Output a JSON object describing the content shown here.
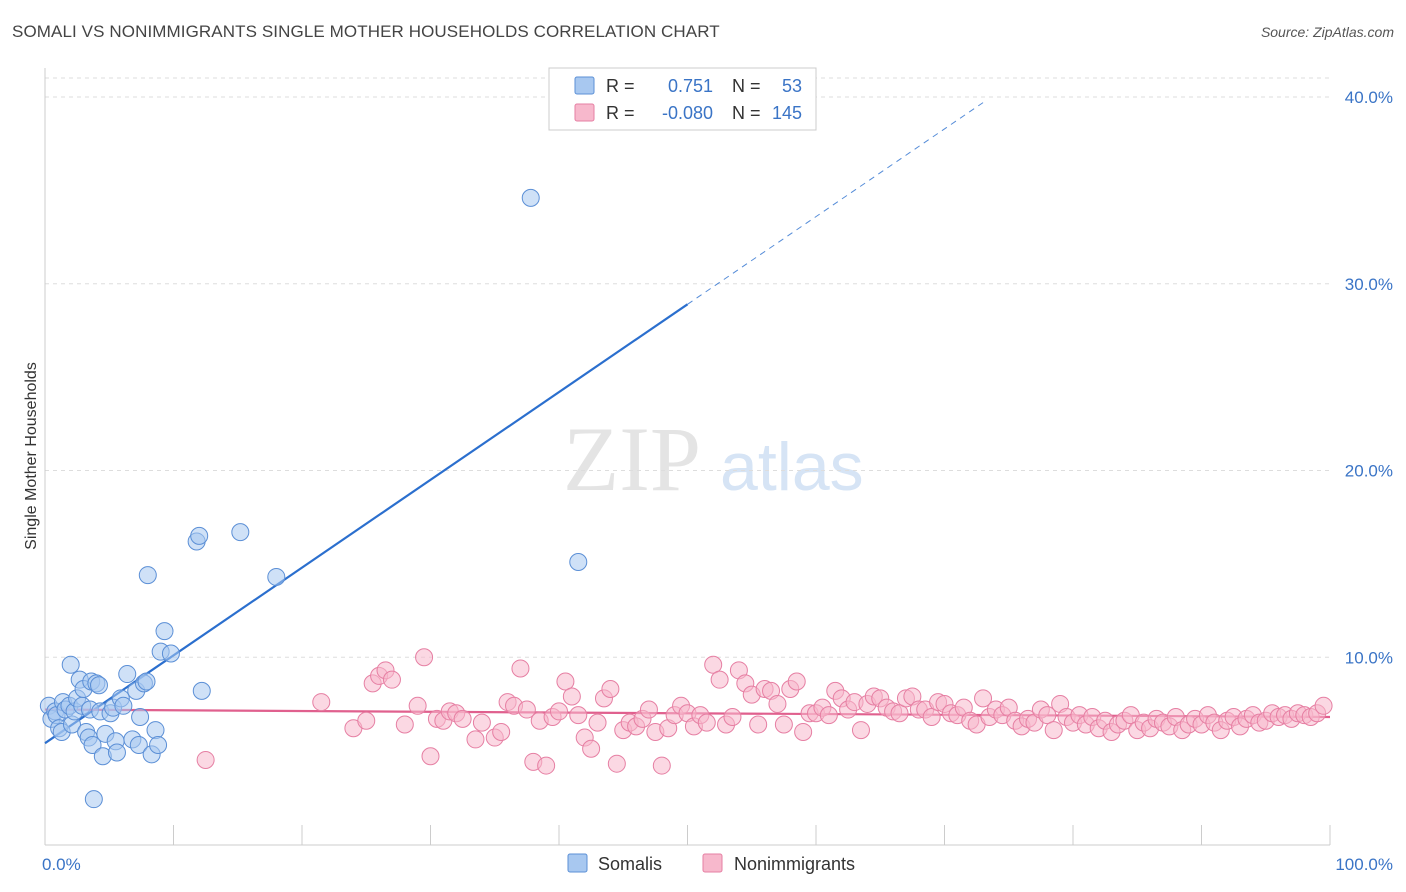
{
  "title": "SOMALI VS NONIMMIGRANTS SINGLE MOTHER HOUSEHOLDS CORRELATION CHART",
  "source": "Source: ZipAtlas.com",
  "watermark": {
    "zip": "ZIP",
    "atlas": "atlas"
  },
  "colors": {
    "somali_fill": "#a8c8f0",
    "somali_stroke": "#5b8fd6",
    "somali_line": "#2b6fce",
    "nonimm_fill": "#f7b8cc",
    "nonimm_stroke": "#e67fa3",
    "nonimm_line": "#e0608e",
    "axis_text": "#3a74c6",
    "grid": "#dddddd"
  },
  "legend": {
    "rows": [
      {
        "r_label": "R =",
        "r_value": "0.751",
        "n_label": "N =",
        "n_value": "53"
      },
      {
        "r_label": "R =",
        "r_value": "-0.080",
        "n_label": "N =",
        "n_value": "145"
      }
    ]
  },
  "bottom_legend": {
    "items": [
      {
        "label": "Somalis"
      },
      {
        "label": "Nonimmigrants"
      }
    ]
  },
  "chart_data": {
    "type": "scatter",
    "xlabel": "",
    "ylabel": "Single Mother Households",
    "xlim": [
      0,
      100
    ],
    "ylim": [
      0,
      40
    ],
    "x_tick_labels": [
      "0.0%",
      "100.0%"
    ],
    "y_ticks": [
      10,
      20,
      30,
      40
    ],
    "y_tick_labels": [
      "10.0%",
      "20.0%",
      "30.0%",
      "40.0%"
    ],
    "grid": true,
    "legend_position": "top-center",
    "series": [
      {
        "name": "Somalis",
        "r": 0.751,
        "n": 53,
        "trend": {
          "x0": 0,
          "y0": 5.4,
          "x1": 50,
          "y1": 28.9,
          "dashed_to_x": 73,
          "dashed_to_y": 39.7
        },
        "points": [
          [
            0.3,
            7.4
          ],
          [
            0.5,
            6.7
          ],
          [
            0.8,
            7.1
          ],
          [
            0.9,
            6.9
          ],
          [
            1.1,
            6.2
          ],
          [
            1.3,
            6.0
          ],
          [
            1.4,
            7.6
          ],
          [
            1.6,
            7.2
          ],
          [
            1.9,
            7.4
          ],
          [
            2.0,
            9.6
          ],
          [
            2.1,
            6.4
          ],
          [
            2.3,
            7.1
          ],
          [
            2.5,
            7.8
          ],
          [
            2.7,
            8.8
          ],
          [
            2.9,
            7.4
          ],
          [
            3.0,
            8.3
          ],
          [
            3.2,
            6.0
          ],
          [
            3.4,
            5.7
          ],
          [
            3.5,
            7.2
          ],
          [
            3.6,
            8.7
          ],
          [
            3.7,
            5.3
          ],
          [
            3.8,
            2.4
          ],
          [
            4.0,
            8.6
          ],
          [
            4.2,
            8.5
          ],
          [
            4.3,
            7.1
          ],
          [
            4.5,
            4.7
          ],
          [
            4.7,
            5.9
          ],
          [
            5.1,
            7.0
          ],
          [
            5.3,
            7.3
          ],
          [
            5.5,
            5.5
          ],
          [
            5.6,
            4.9
          ],
          [
            5.9,
            7.8
          ],
          [
            6.1,
            7.4
          ],
          [
            6.4,
            9.1
          ],
          [
            6.8,
            5.6
          ],
          [
            7.1,
            8.2
          ],
          [
            7.3,
            5.3
          ],
          [
            7.4,
            6.8
          ],
          [
            7.7,
            8.6
          ],
          [
            7.9,
            8.7
          ],
          [
            8.0,
            14.4
          ],
          [
            8.3,
            4.8
          ],
          [
            8.6,
            6.1
          ],
          [
            8.8,
            5.3
          ],
          [
            9.0,
            10.3
          ],
          [
            9.3,
            11.4
          ],
          [
            9.8,
            10.2
          ],
          [
            11.8,
            16.2
          ],
          [
            12.0,
            16.5
          ],
          [
            12.2,
            8.2
          ],
          [
            15.2,
            16.7
          ],
          [
            18.0,
            14.3
          ],
          [
            37.8,
            34.6
          ],
          [
            41.5,
            15.1
          ]
        ]
      },
      {
        "name": "Nonimmigrants",
        "r": -0.08,
        "n": 145,
        "trend": {
          "x0": 0,
          "y0": 7.2,
          "x1": 100,
          "y1": 6.8
        },
        "points": [
          [
            12.5,
            4.5
          ],
          [
            21.5,
            7.6
          ],
          [
            24.0,
            6.2
          ],
          [
            25.0,
            6.6
          ],
          [
            25.5,
            8.6
          ],
          [
            26.0,
            9.0
          ],
          [
            26.5,
            9.3
          ],
          [
            27.0,
            8.8
          ],
          [
            28.0,
            6.4
          ],
          [
            29.0,
            7.4
          ],
          [
            29.5,
            10.0
          ],
          [
            30.0,
            4.7
          ],
          [
            30.5,
            6.7
          ],
          [
            31.0,
            6.6
          ],
          [
            31.5,
            7.1
          ],
          [
            32.0,
            7.0
          ],
          [
            32.5,
            6.7
          ],
          [
            33.5,
            5.6
          ],
          [
            34.0,
            6.5
          ],
          [
            35.0,
            5.7
          ],
          [
            35.5,
            6.0
          ],
          [
            36.0,
            7.6
          ],
          [
            36.5,
            7.4
          ],
          [
            37.0,
            9.4
          ],
          [
            37.5,
            7.2
          ],
          [
            38.0,
            4.4
          ],
          [
            38.5,
            6.6
          ],
          [
            39.0,
            4.2
          ],
          [
            39.5,
            6.8
          ],
          [
            40.0,
            7.1
          ],
          [
            40.5,
            8.7
          ],
          [
            41.0,
            7.9
          ],
          [
            41.5,
            6.9
          ],
          [
            42.0,
            5.7
          ],
          [
            42.5,
            5.1
          ],
          [
            43.0,
            6.5
          ],
          [
            43.5,
            7.8
          ],
          [
            44.0,
            8.3
          ],
          [
            44.5,
            4.3
          ],
          [
            45.0,
            6.1
          ],
          [
            45.5,
            6.5
          ],
          [
            46.0,
            6.3
          ],
          [
            46.5,
            6.7
          ],
          [
            47.0,
            7.2
          ],
          [
            47.5,
            6.0
          ],
          [
            48.0,
            4.2
          ],
          [
            48.5,
            6.2
          ],
          [
            49.0,
            6.9
          ],
          [
            49.5,
            7.4
          ],
          [
            50.0,
            7.0
          ],
          [
            50.5,
            6.3
          ],
          [
            51.0,
            6.9
          ],
          [
            51.5,
            6.5
          ],
          [
            52.0,
            9.6
          ],
          [
            52.5,
            8.8
          ],
          [
            53.0,
            6.4
          ],
          [
            53.5,
            6.8
          ],
          [
            54.0,
            9.3
          ],
          [
            54.5,
            8.6
          ],
          [
            55.0,
            8.0
          ],
          [
            55.5,
            6.4
          ],
          [
            56.0,
            8.3
          ],
          [
            56.5,
            8.2
          ],
          [
            57.0,
            7.5
          ],
          [
            57.5,
            6.4
          ],
          [
            58.0,
            8.3
          ],
          [
            58.5,
            8.7
          ],
          [
            59.0,
            6.0
          ],
          [
            59.5,
            7.0
          ],
          [
            60.0,
            7.0
          ],
          [
            60.5,
            7.3
          ],
          [
            61.0,
            6.9
          ],
          [
            61.5,
            8.2
          ],
          [
            62.0,
            7.8
          ],
          [
            62.5,
            7.2
          ],
          [
            63.0,
            7.6
          ],
          [
            63.5,
            6.1
          ],
          [
            64.0,
            7.5
          ],
          [
            64.5,
            7.9
          ],
          [
            65.0,
            7.8
          ],
          [
            65.5,
            7.3
          ],
          [
            66.0,
            7.1
          ],
          [
            66.5,
            7.0
          ],
          [
            67.0,
            7.8
          ],
          [
            67.5,
            7.9
          ],
          [
            68.0,
            7.2
          ],
          [
            68.5,
            7.2
          ],
          [
            69.0,
            6.8
          ],
          [
            69.5,
            7.6
          ],
          [
            70.0,
            7.5
          ],
          [
            70.5,
            7.0
          ],
          [
            71.0,
            6.9
          ],
          [
            71.5,
            7.3
          ],
          [
            72.0,
            6.6
          ],
          [
            72.5,
            6.4
          ],
          [
            73.0,
            7.8
          ],
          [
            73.5,
            6.8
          ],
          [
            74.0,
            7.2
          ],
          [
            74.5,
            6.9
          ],
          [
            75.0,
            7.3
          ],
          [
            75.5,
            6.6
          ],
          [
            76.0,
            6.3
          ],
          [
            76.5,
            6.7
          ],
          [
            77.0,
            6.5
          ],
          [
            77.5,
            7.2
          ],
          [
            78.0,
            6.9
          ],
          [
            78.5,
            6.1
          ],
          [
            79.0,
            7.5
          ],
          [
            79.5,
            6.8
          ],
          [
            80.0,
            6.5
          ],
          [
            80.5,
            6.9
          ],
          [
            81.0,
            6.4
          ],
          [
            81.5,
            6.8
          ],
          [
            82.0,
            6.2
          ],
          [
            82.5,
            6.6
          ],
          [
            83.0,
            6.0
          ],
          [
            83.5,
            6.4
          ],
          [
            84.0,
            6.6
          ],
          [
            84.5,
            6.9
          ],
          [
            85.0,
            6.1
          ],
          [
            85.5,
            6.5
          ],
          [
            86.0,
            6.2
          ],
          [
            86.5,
            6.7
          ],
          [
            87.0,
            6.5
          ],
          [
            87.5,
            6.3
          ],
          [
            88.0,
            6.8
          ],
          [
            88.5,
            6.1
          ],
          [
            89.0,
            6.4
          ],
          [
            89.5,
            6.7
          ],
          [
            90.0,
            6.4
          ],
          [
            90.5,
            6.9
          ],
          [
            91.0,
            6.5
          ],
          [
            91.5,
            6.1
          ],
          [
            92.0,
            6.6
          ],
          [
            92.5,
            6.8
          ],
          [
            93.0,
            6.3
          ],
          [
            93.5,
            6.7
          ],
          [
            94.0,
            6.9
          ],
          [
            94.5,
            6.5
          ],
          [
            95.0,
            6.6
          ],
          [
            95.5,
            7.0
          ],
          [
            96.0,
            6.8
          ],
          [
            96.5,
            6.9
          ],
          [
            97.0,
            6.7
          ],
          [
            97.5,
            7.0
          ],
          [
            98.0,
            6.9
          ],
          [
            98.5,
            6.8
          ],
          [
            99.0,
            7.0
          ],
          [
            99.5,
            7.4
          ]
        ]
      }
    ]
  }
}
